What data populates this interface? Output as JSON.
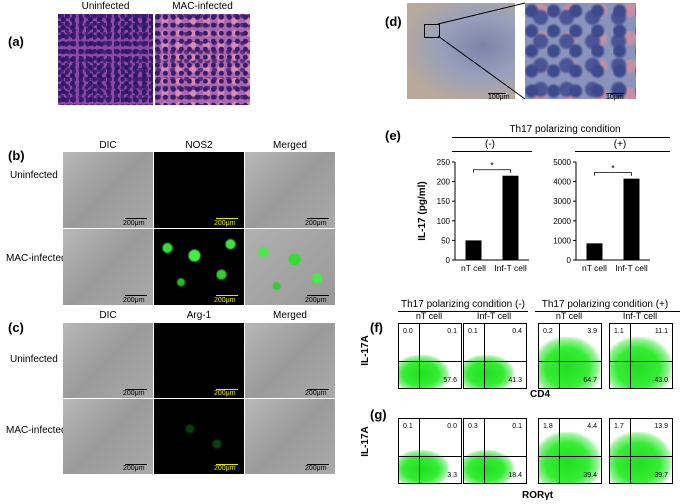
{
  "panels": {
    "a": {
      "letter": "(a)",
      "cols": [
        "Uninfected",
        "MAC-infected"
      ]
    },
    "b": {
      "letter": "(b)",
      "cols": [
        "DIC",
        "NOS2",
        "Merged"
      ],
      "rows": [
        "Uninfected",
        "MAC-infected"
      ],
      "scale": "200μm"
    },
    "c": {
      "letter": "(c)",
      "cols": [
        "DIC",
        "Arg-1",
        "Merged"
      ],
      "rows": [
        "Uninfected",
        "MAC-infected"
      ],
      "scale": "200μm"
    },
    "d": {
      "letter": "(d)",
      "scale_left": "100μm",
      "scale_right": "10μm"
    },
    "e": {
      "letter": "(e)",
      "header": "Th17 polarizing condition",
      "cond_neg": "(-)",
      "cond_pos": "(+)",
      "star": "*"
    },
    "f": {
      "letter": "(f)",
      "ylabel": "IL-17A",
      "xlabel": "CD4",
      "group_neg": "Th17 polarizing condition (-)",
      "group_pos": "Th17 polarizing condition (+)",
      "plots": [
        {
          "title": "nT cell",
          "ul": "0.0",
          "ur": "0.1",
          "lr": "57.6"
        },
        {
          "title": "Inf-T cell",
          "ul": "0.1",
          "ur": "0.4",
          "lr": "41.3"
        },
        {
          "title": "nT cell",
          "ul": "0.2",
          "ur": "3.9",
          "lr": "64.7"
        },
        {
          "title": "Inf-T cell",
          "ul": "1.1",
          "ur": "11.1",
          "lr": "43.0"
        }
      ]
    },
    "g": {
      "letter": "(g)",
      "ylabel": "IL-17A",
      "xlabel": "RORγt",
      "plots": [
        {
          "ul": "0.1",
          "ur": "0.0",
          "lr": "3.3"
        },
        {
          "ul": "0.3",
          "ur": "0.1",
          "lr": "18.4"
        },
        {
          "ul": "1.8",
          "ur": "4.4",
          "lr": "39.4"
        },
        {
          "ul": "1.7",
          "ur": "13.9",
          "lr": "39.7"
        }
      ]
    }
  },
  "chart_data": [
    {
      "type": "bar",
      "title": "",
      "ylabel": "IL-17 (pg/ml)",
      "categories": [
        "nT cell",
        "Inf-T cell"
      ],
      "values": [
        50,
        215
      ],
      "ylim": [
        0,
        250
      ],
      "yticks": [
        0,
        50,
        100,
        150,
        200,
        250
      ]
    },
    {
      "type": "bar",
      "title": "",
      "categories": [
        "nT cell",
        "Inf-T cell"
      ],
      "values": [
        850,
        4150
      ],
      "ylim": [
        0,
        5000
      ],
      "yticks": [
        0,
        1000,
        2000,
        3000,
        4000,
        5000
      ]
    }
  ]
}
